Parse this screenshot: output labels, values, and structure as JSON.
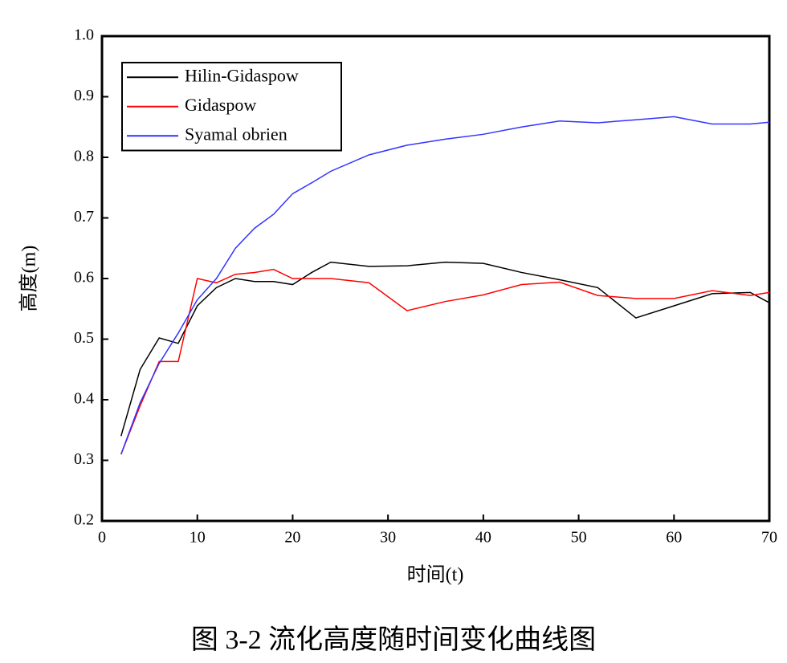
{
  "chart_data": {
    "type": "line",
    "caption": "图 3-2  流化高度随时间变化曲线图",
    "x_label": "时间(t)",
    "y_label": "高度(m)",
    "x": [
      2,
      4,
      6,
      8,
      10,
      12,
      14,
      16,
      18,
      20,
      22,
      24,
      28,
      32,
      36,
      40,
      44,
      48,
      52,
      56,
      60,
      64,
      68,
      70
    ],
    "series": [
      {
        "name": "Hilin-Gidaspow",
        "color": "#000000",
        "values": [
          0.34,
          0.45,
          0.502,
          0.493,
          0.555,
          0.585,
          0.6,
          0.595,
          0.595,
          0.59,
          0.61,
          0.627,
          0.62,
          0.621,
          0.627,
          0.625,
          0.61,
          0.598,
          0.585,
          0.535,
          0.555,
          0.575,
          0.577,
          0.56
        ]
      },
      {
        "name": "Gidaspow",
        "color": "#ff0000",
        "values": [
          0.31,
          0.39,
          0.463,
          0.463,
          0.6,
          0.593,
          0.607,
          0.61,
          0.615,
          0.6,
          0.6,
          0.6,
          0.593,
          0.547,
          0.562,
          0.573,
          0.59,
          0.594,
          0.572,
          0.567,
          0.567,
          0.58,
          0.572,
          0.577
        ]
      },
      {
        "name": "Syamal obrien",
        "color": "#3333ff",
        "values": [
          0.31,
          0.395,
          0.46,
          0.51,
          0.565,
          0.6,
          0.65,
          0.683,
          0.706,
          0.74,
          0.758,
          0.777,
          0.804,
          0.82,
          0.83,
          0.838,
          0.85,
          0.86,
          0.857,
          0.862,
          0.867,
          0.855,
          0.855,
          0.858
        ]
      }
    ],
    "xlim": [
      0,
      70
    ],
    "xticks": [
      0,
      10,
      20,
      30,
      40,
      50,
      60,
      70
    ],
    "ylim": [
      0.2,
      1
    ],
    "yticks": [
      0.2,
      0.3,
      0.4,
      0.5,
      0.6,
      0.7,
      0.8,
      0.9,
      {
        "value": 1,
        "label": "1.0"
      }
    ],
    "legend": "upper-left",
    "grid": false
  }
}
